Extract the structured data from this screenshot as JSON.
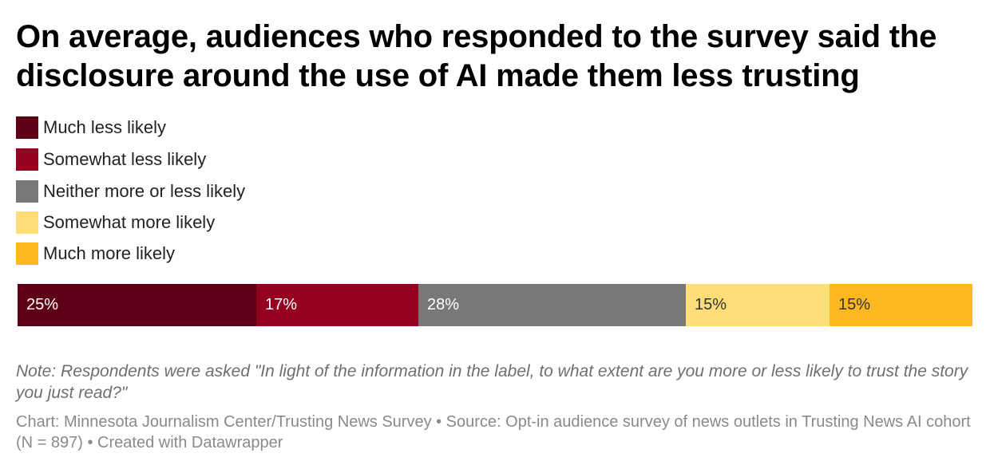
{
  "title": "On average, audiences who responded to the survey said the disclosure around the use of AI made them less trusting",
  "legend": [
    {
      "label": "Much less likely",
      "color": "#5d0015"
    },
    {
      "label": "Somewhat less likely",
      "color": "#930020"
    },
    {
      "label": "Neither more or less likely",
      "color": "#787878"
    },
    {
      "label": "Somewhat more likely",
      "color": "#ffde7a"
    },
    {
      "label": "Much more likely",
      "color": "#ffb81f"
    }
  ],
  "chart_data": {
    "type": "bar",
    "orientation": "horizontal",
    "stacked": true,
    "categories": [
      "Much less likely",
      "Somewhat less likely",
      "Neither more or less likely",
      "Somewhat more likely",
      "Much more likely"
    ],
    "values": [
      25,
      17,
      28,
      15,
      15
    ],
    "labels": [
      "25%",
      "17%",
      "28%",
      "15%",
      "15%"
    ],
    "colors": [
      "#5d0015",
      "#930020",
      "#787878",
      "#ffde7a",
      "#ffb81f"
    ],
    "label_colors": [
      "#ffffff",
      "#ffffff",
      "#ffffff",
      "#333333",
      "#333333"
    ],
    "title": "On average, audiences who responded to the survey said the disclosure around the use of AI made them less trusting",
    "xlabel": "",
    "ylabel": "",
    "xlim": [
      0,
      100
    ]
  },
  "note": "Note: Respondents were asked \"In light of the information in the label, to what extent are you more or less likely to trust the story you just read?\"",
  "source": "Chart: Minnesota Journalism Center/Trusting News Survey • Source: Opt-in audience survey of news outlets in Trusting News AI cohort (N = 897) • Created with Datawrapper"
}
